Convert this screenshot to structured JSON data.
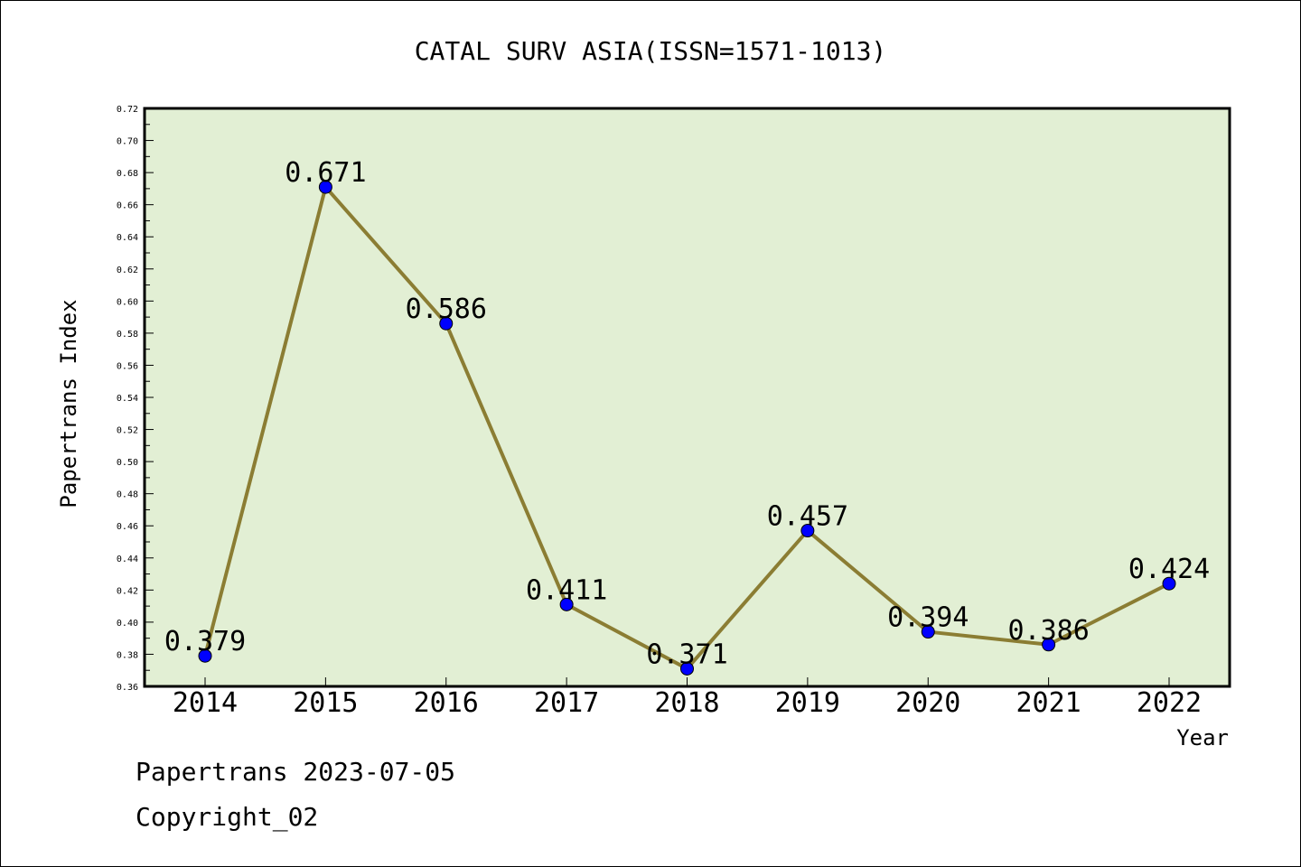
{
  "chart_data": {
    "type": "line",
    "title": "CATAL SURV ASIA(ISSN=1571-1013)",
    "xlabel": "Year",
    "ylabel": "Papertrans Index",
    "categories": [
      "2014",
      "2015",
      "2016",
      "2017",
      "2018",
      "2019",
      "2020",
      "2021",
      "2022"
    ],
    "series": [
      {
        "values": [
          0.379,
          0.671,
          0.586,
          0.411,
          0.371,
          0.457,
          0.394,
          0.386,
          0.424
        ],
        "value_labels": [
          "0.379",
          "0.671",
          "0.586",
          "0.411",
          "0.371",
          "0.457",
          "0.394",
          "0.386",
          "0.424"
        ]
      }
    ],
    "ylim": [
      0.36,
      0.72
    ],
    "yticks": [
      "0.36",
      "0.38",
      "0.40",
      "0.42",
      "0.44",
      "0.46",
      "0.48",
      "0.50",
      "0.52",
      "0.54",
      "0.56",
      "0.58",
      "0.60",
      "0.62",
      "0.64",
      "0.66",
      "0.68",
      "0.70",
      "0.72"
    ],
    "grid": false,
    "colors": {
      "plot_background": "#e2efd4",
      "line": "#8b7d33",
      "marker": "#0000ff"
    }
  },
  "footer": {
    "line1": "Papertrans 2023-07-05",
    "line2": "Copyright_02"
  }
}
